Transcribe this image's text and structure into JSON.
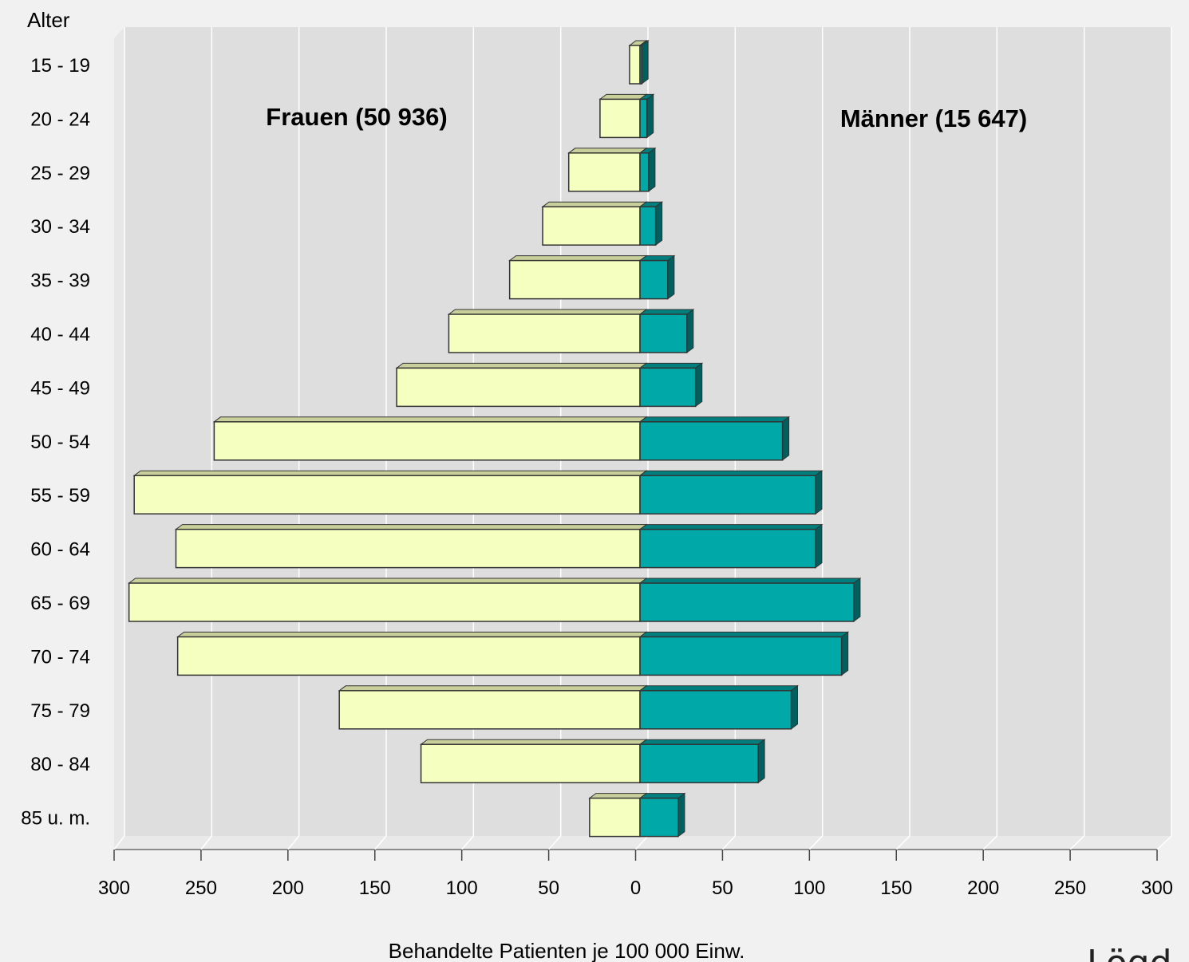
{
  "chart_data": {
    "type": "bar",
    "orientation": "horizontal",
    "layout": "population-pyramid",
    "ylabel": "Alter",
    "xlabel": "Behandelte Patienten je 100 000 Einw.",
    "categories": [
      "15 - 19",
      "20 - 24",
      "25 - 29",
      "30 - 34",
      "35 - 39",
      "40 - 44",
      "45 - 49",
      "50 - 54",
      "55 - 59",
      "60 - 64",
      "65 - 69",
      "70 - 74",
      "75 - 79",
      "80 - 84",
      "85 u. m."
    ],
    "series": [
      {
        "name": "Frauen (50 936)",
        "side": "left",
        "color": "#f5ffc0",
        "values": [
          6,
          23,
          41,
          56,
          75,
          110,
          140,
          245,
          291,
          267,
          294,
          266,
          173,
          126,
          29
        ]
      },
      {
        "name": "Männer (15 647)",
        "side": "right",
        "color": "#00a8a8",
        "values": [
          1,
          4,
          5,
          9,
          16,
          27,
          32,
          82,
          101,
          101,
          123,
          116,
          87,
          68,
          22
        ]
      }
    ],
    "xlim": [
      0,
      300
    ],
    "x_ticks_left": [
      "300",
      "250",
      "200",
      "150",
      "100",
      "50"
    ],
    "x_ticks_center": "0",
    "x_ticks_right": [
      "50",
      "100",
      "150",
      "200",
      "250",
      "300"
    ],
    "grid": true,
    "style": "3d"
  },
  "logo_text": "Lögd"
}
